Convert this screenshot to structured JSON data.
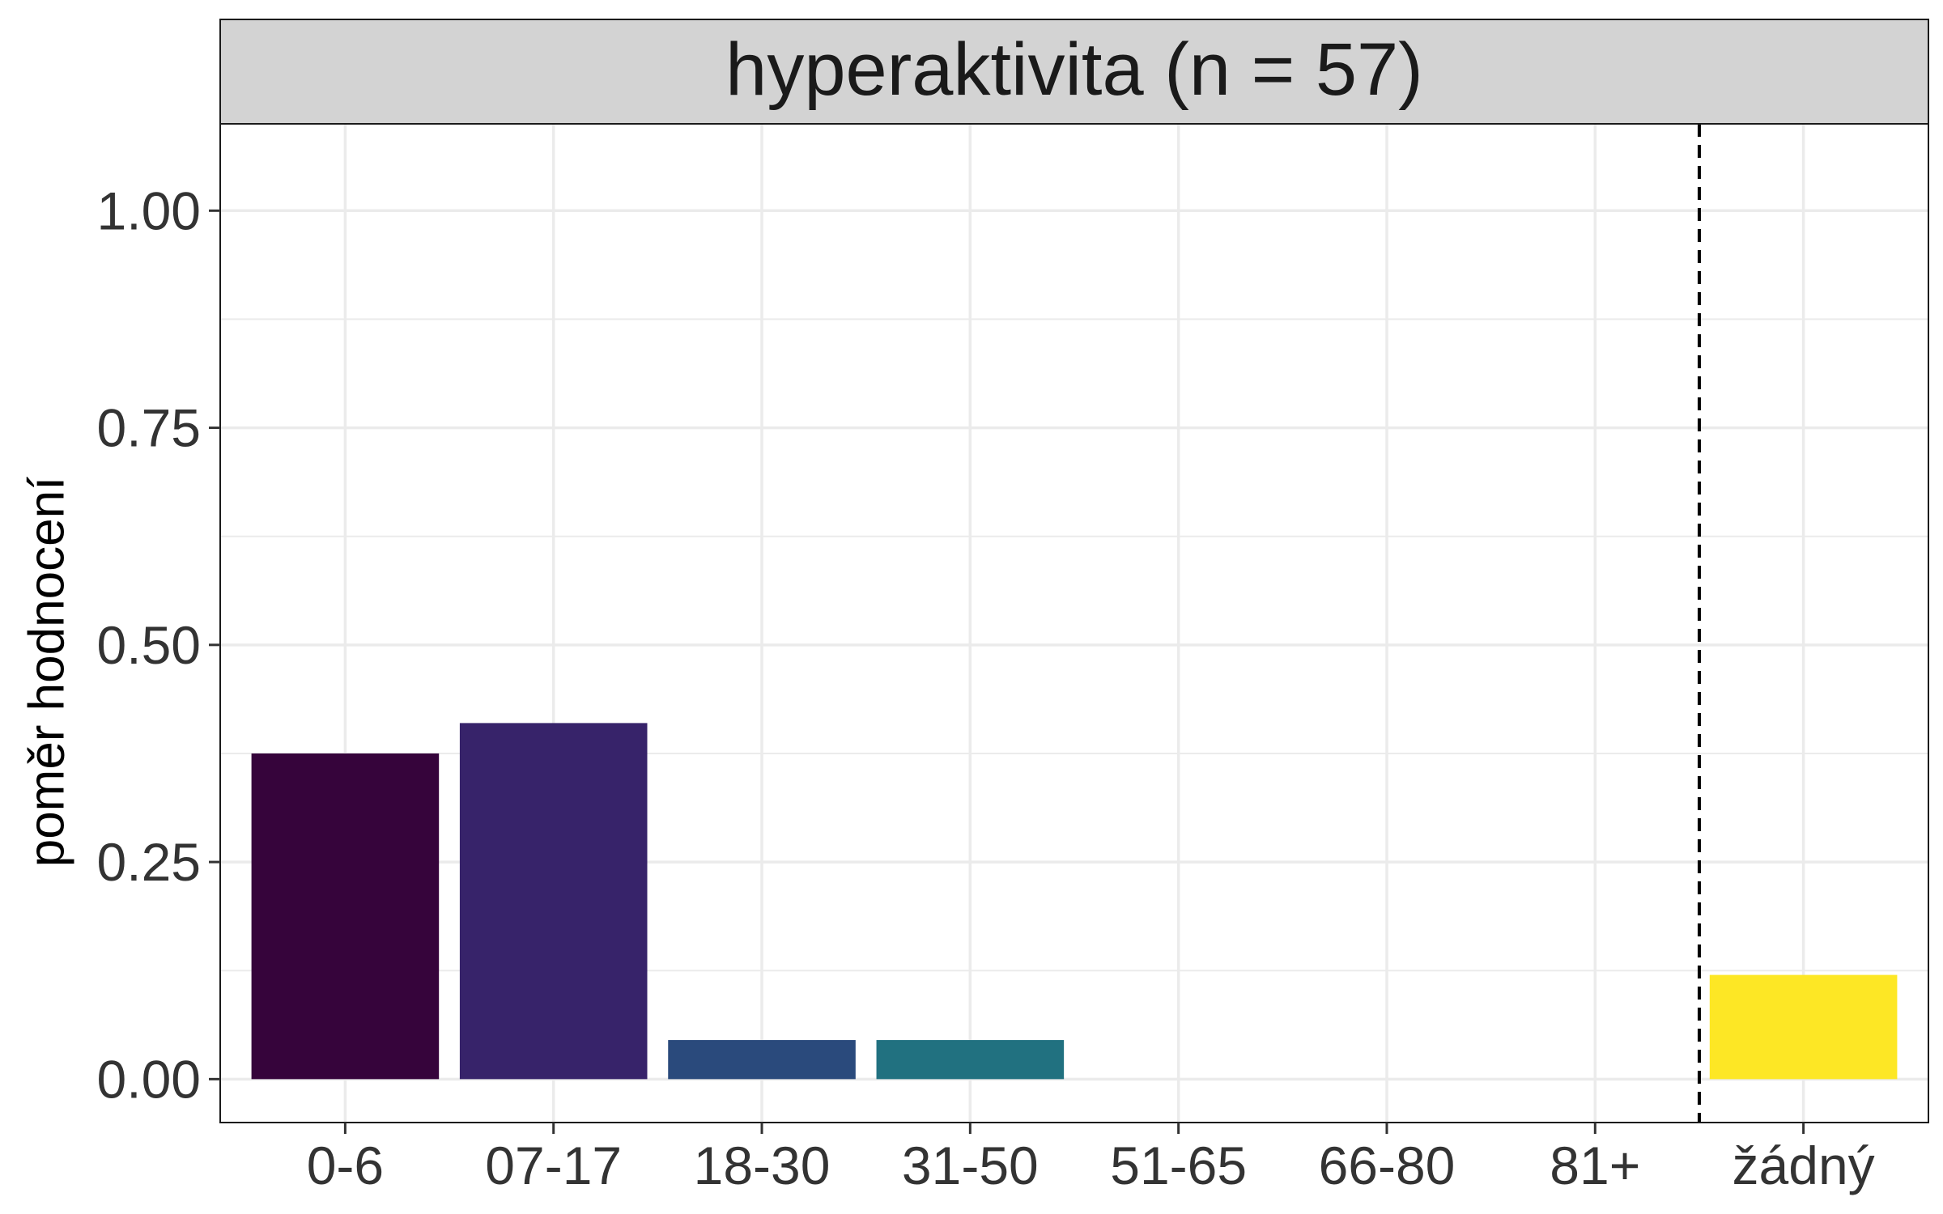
{
  "chart_data": {
    "type": "bar",
    "facet_title": "hyperaktivita (n = 57)",
    "ylabel": "poměr hodnocení",
    "xlabel": "",
    "categories": [
      "0-6",
      "07-17",
      "18-30",
      "31-50",
      "51-65",
      "66-80",
      "81+",
      "žádný"
    ],
    "values": [
      0.375,
      0.41,
      0.045,
      0.045,
      0,
      0,
      0,
      0.12
    ],
    "colors": [
      "#36043b",
      "#37236a",
      "#2a4a7c",
      "#217180",
      "#1f9a8a",
      "#58c166",
      "#b6dd2b",
      "#fde725"
    ],
    "ylim": [
      -0.05,
      1.1
    ],
    "yticks": [
      0,
      0.25,
      0.5,
      0.75,
      1
    ],
    "ytick_labels": [
      "0.00",
      "0.25",
      "0.50",
      "0.75",
      "1.00"
    ],
    "reference_line": {
      "between": [
        "81+",
        "žádný"
      ],
      "style": "dashed"
    },
    "grid": true,
    "colors_ui": {
      "panel_border": "#1a1a1a",
      "grid": "#ebebeb",
      "strip_fill": "#d3d3d3",
      "reference_line": "#000000"
    }
  }
}
